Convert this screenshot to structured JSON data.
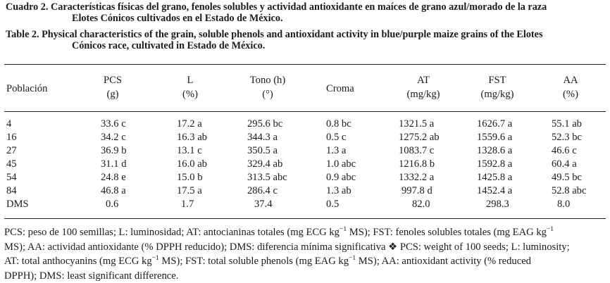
{
  "caption_es": [
    "Cuadro 2. Características físicas del grano, fenoles solubles y actividad antioxidante en maíces de grano azul/morado de la raza",
    "Elotes Cónicos cultivados en el  Estado de México."
  ],
  "caption_en": [
    "Table 2. Physical characteristics of the grain, soluble phenols and antioxidant activity in blue/purple maize grains of the Elotes",
    "Cónicos race, cultivated in Estado de México."
  ],
  "table": {
    "headers": [
      {
        "line1": "Población",
        "line2": ""
      },
      {
        "line1": "PCS",
        "line2": "(g)"
      },
      {
        "line1": "L",
        "line2": "(%)"
      },
      {
        "line1": "Tono (h)",
        "line2": "(°)"
      },
      {
        "line1": "Croma",
        "line2": ""
      },
      {
        "line1": "AT",
        "line2": "(mg/kg)"
      },
      {
        "line1": "FST",
        "line2": "(mg/kg)"
      },
      {
        "line1": "AA",
        "line2": "(%)"
      }
    ],
    "rows": [
      [
        "4",
        "33.6 c",
        "17.2 a",
        "295.6 bc",
        "0.8 bc",
        "1321.5 a",
        "1626.7 a",
        "55.1 ab"
      ],
      [
        "16",
        "34.2 c",
        "16.3 ab",
        "344.3 a",
        "0.5 c",
        "1275.2 ab",
        "1559.6 a",
        "52.3 bc"
      ],
      [
        "27",
        "36.9 b",
        "13.1 c",
        "350.5 a",
        "1.3 a",
        "1083.7 c",
        "1328.6 a",
        "46.6 c"
      ],
      [
        "45",
        "31.1 d",
        "16.0 ab",
        "329.4 ab",
        "1.0 abc",
        "1216.8 b",
        "1592.8 a",
        "60.4 a"
      ],
      [
        "54",
        "24.8 e",
        "15.0 b",
        "313.5 abc",
        "0.9 abc",
        "1332.2 a",
        "1425.8 a",
        "49.5 bc"
      ],
      [
        "84",
        "46.8 a",
        "17.5 a",
        "286.4 c",
        "1.3 ab",
        "997.8 d",
        "1452.4 a",
        "52.8 abc"
      ],
      [
        "DMS",
        "0.6",
        "1.7",
        "37.4",
        "0.5",
        "82.0",
        "298.3",
        "8.0"
      ]
    ]
  },
  "footnote": {
    "line1_a": "PCS: peso de 100 semillas; L: luminosidad; AT: antocianinas totales (mg ECG kg",
    "line1_sup1": "−1",
    "line1_b": " MS); FST: fenoles solubles totales (mg EAG kg",
    "line1_sup2": "−1",
    "line2": "MS); AA: actividad antioxidante (% DPPH reducido); DMS: diferencia mínima significativa ❖ PCS: weight of 100 seeds; L: luminosity;",
    "line3_a": "AT: total anthocyanins (mg ECG kg",
    "line3_sup1": "−1",
    "line3_b": " MS); FST: total soluble phenols (mg EAG kg",
    "line3_sup2": "−1",
    "line3_c": " MS); AA: antioxidant activity (% reduced",
    "line4": "DPPH); DMS: least significant difference."
  }
}
